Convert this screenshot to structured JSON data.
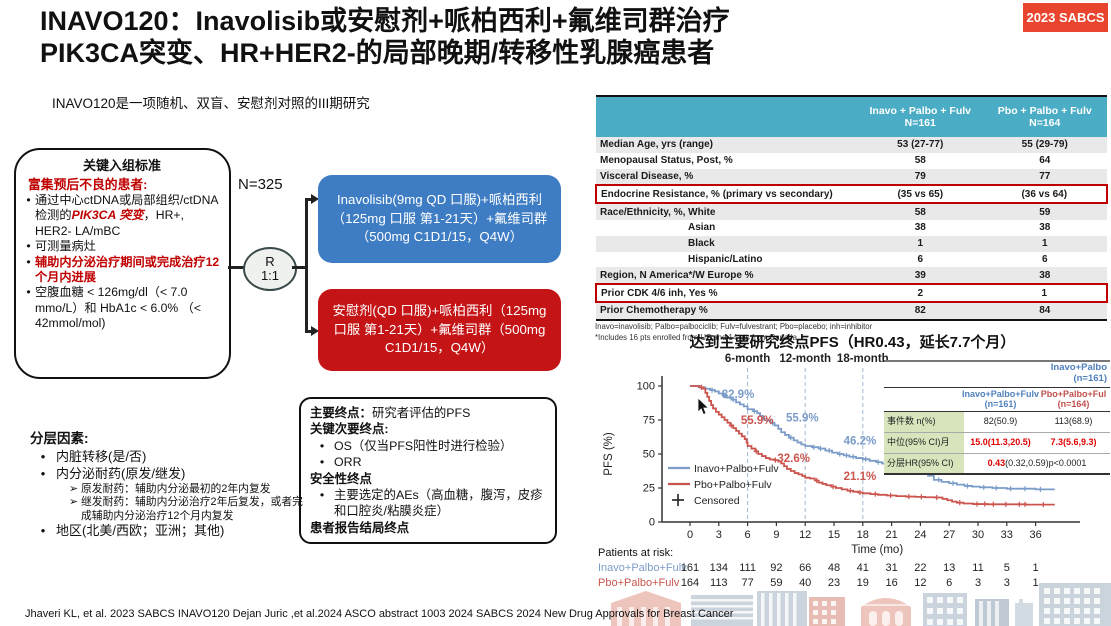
{
  "slide": {
    "title_line1": "INAVO120：Inavolisib或安慰剂+哌柏西利+氟维司群治疗",
    "title_line2": "PIK3CA突变、HR+HER2-的局部晚期/转移性乳腺癌患者",
    "badge": "2023 SABCS",
    "subtitle": "INAVO120是一项随机、双盲、安慰剂对照的III期研究",
    "footer": "Jhaveri KL, et al. 2023 SABCS INAVO120    Dejan Juric ,et al.2024 ASCO abstract 1003 2024 SABCS  2024 New Drug Approvals for Breast Cancer"
  },
  "schema": {
    "n_label": "N=325",
    "randomization_line1": "R",
    "randomization_line2": "1:1",
    "criteria": {
      "heading": "关键入组标准",
      "subheading": "富集预后不良的患者:",
      "bullets": [
        {
          "segments": [
            {
              "t": "通过中心ctDNA或局部组织/ctDNA检测的"
            },
            {
              "t": "PIK3CA 突变",
              "c": "red-bold-italic"
            },
            {
              "t": "，HR+, HER2- LA/mBC"
            }
          ]
        },
        {
          "segments": [
            {
              "t": "可测量病灶"
            }
          ]
        },
        {
          "segments": [
            {
              "t": "辅助内分泌治疗期间或完成治疗12个月内进展",
              "c": "red-bold"
            }
          ]
        },
        {
          "segments": [
            {
              "t": "空腹血糖 < 126mg/dl（< 7.0 mmo/L）和 HbA1c < 6.0% （< 42mmol/mol)"
            }
          ]
        }
      ]
    },
    "arm_inavo": "Inavolisib(9mg QD 口服)+哌柏西利（125mg 口服 第1-21天）+氟维司群（500mg C1D1/15，Q4W）",
    "arm_placebo": "安慰剂(QD 口服)+哌柏西利（125mg 口服 第1-21天）+氟维司群（500mg C1D1/15，Q4W）"
  },
  "endpoints": {
    "lines": [
      {
        "bullet": false,
        "segments": [
          {
            "t": "主要终点：",
            "c": "bold"
          },
          {
            "t": "研究者评估的PFS"
          }
        ]
      },
      {
        "bullet": false,
        "segments": [
          {
            "t": "关键次要终点:",
            "c": "bold"
          }
        ]
      },
      {
        "bullet": true,
        "segments": [
          {
            "t": "OS（仅当PFS阳性时进行检验）"
          }
        ]
      },
      {
        "bullet": true,
        "segments": [
          {
            "t": "ORR"
          }
        ]
      },
      {
        "bullet": false,
        "segments": [
          {
            "t": "安全性终点",
            "c": "bold"
          }
        ]
      },
      {
        "bullet": true,
        "segments": [
          {
            "t": "主要选定的AEs（高血糖，腹泻，皮疹和口腔炎/粘膜炎症）"
          }
        ]
      },
      {
        "bullet": false,
        "segments": [
          {
            "t": "患者报告结局终点",
            "c": "bold"
          }
        ]
      }
    ]
  },
  "stratification": {
    "heading": "分层因素:",
    "items": [
      {
        "level": 1,
        "text": "内脏转移(是/否)"
      },
      {
        "level": 1,
        "text": "内分泌耐药(原发/继发)"
      },
      {
        "level": 2,
        "text": "原发耐药：辅助内分泌最初的2年内复发"
      },
      {
        "level": 2,
        "text": "继发耐药：辅助内分泌治疗2年后复发，或者完成辅助内分泌治疗12个月内复发"
      },
      {
        "level": 1,
        "text": "地区(北美/西欧；亚洲；其他)"
      }
    ]
  },
  "baseline_table": {
    "col1": {
      "line1": "Inavo + Palbo + Fulv",
      "line2": "N=161"
    },
    "col2": {
      "line1": "Pbo + Palbo + Fulv",
      "line2": "N=164"
    },
    "rows": [
      {
        "label": "Median Age, yrs (range)",
        "v1": "53 (27-77)",
        "v2": "55 (29-79)"
      },
      {
        "label": "Menopausal Status, Post, %",
        "v1": "58",
        "v2": "64"
      },
      {
        "label": "Visceral Disease, %",
        "v1": "79",
        "v2": "77"
      },
      {
        "label": "Endocrine Resistance, % (primary vs secondary)",
        "v1": "(35 vs 65)",
        "v2": "(36 vs 64)",
        "highlight": true
      },
      {
        "label": "Race/Ethnicity, %, White",
        "v1": "58",
        "v2": "59"
      },
      {
        "label": "Asian",
        "v1": "38",
        "v2": "38",
        "indent": true
      },
      {
        "label": "Black",
        "v1": "1",
        "v2": "1",
        "indent": true
      },
      {
        "label": "Hispanic/Latino",
        "v1": "6",
        "v2": "6",
        "indent": true
      },
      {
        "label": "Region, N America*/W Europe %",
        "v1": "39",
        "v2": "38"
      },
      {
        "label": "Prior CDK 4/6 inh, Yes %",
        "v1": "2",
        "v2": "1",
        "highlight": true
      },
      {
        "label": "Prior Chemotherapy %",
        "v1": "82",
        "v2": "84"
      }
    ],
    "footnote1": "Inavo=inavolisib; Palbo=palbociclib; Fulv=fulvestrant; Pbo=placebo; inh=inhibitor",
    "footnote2": "*Includes 16 pts enrolled from US and 14 pts from Canada"
  },
  "chart_data": {
    "type": "line",
    "subtype": "kaplan-meier",
    "title": "达到主要研究终点PFS（HR0.43，延长7.7个月）",
    "xlabel": "Time (mo)",
    "ylabel": "PFS (%)",
    "xlim": [
      0,
      38.5
    ],
    "ylim": [
      0,
      100
    ],
    "xticks": [
      0,
      3,
      6,
      9,
      12,
      15,
      18,
      21,
      24,
      27,
      30,
      33,
      36
    ],
    "yticks": [
      0,
      25,
      50,
      75,
      100
    ],
    "grid": false,
    "legend_position": "lower-left",
    "landmarks": [
      {
        "x": 6,
        "label": "6-month"
      },
      {
        "x": 12,
        "label": "12-month"
      },
      {
        "x": 18,
        "label": "18-month"
      }
    ],
    "series": [
      {
        "name": "Inavo+Palbo+Fulv",
        "color": "#7b9cc9",
        "points": [
          [
            0,
            100
          ],
          [
            0.9,
            99
          ],
          [
            1.6,
            98
          ],
          [
            2.1,
            97
          ],
          [
            2.6,
            96
          ],
          [
            3,
            94.5
          ],
          [
            3.4,
            93
          ],
          [
            3.8,
            91.5
          ],
          [
            4.3,
            90
          ],
          [
            4.8,
            88
          ],
          [
            5.2,
            86.5
          ],
          [
            5.6,
            85
          ],
          [
            6,
            82.9
          ],
          [
            6.6,
            81.5
          ],
          [
            7,
            80
          ],
          [
            7.3,
            78
          ],
          [
            7.6,
            76
          ],
          [
            8,
            74.5
          ],
          [
            8.4,
            73
          ],
          [
            8.8,
            71
          ],
          [
            9.2,
            68.5
          ],
          [
            9.5,
            66
          ],
          [
            9.9,
            64
          ],
          [
            10.3,
            62
          ],
          [
            10.8,
            60
          ],
          [
            11.2,
            58.5
          ],
          [
            11.6,
            57
          ],
          [
            12,
            55.9
          ],
          [
            12.7,
            55
          ],
          [
            13.4,
            54
          ],
          [
            14.1,
            52.5
          ],
          [
            14.8,
            51
          ],
          [
            15.4,
            50
          ],
          [
            16,
            49
          ],
          [
            16.6,
            48
          ],
          [
            17.3,
            47
          ],
          [
            18,
            46.2
          ],
          [
            18.7,
            45
          ],
          [
            19.4,
            44
          ],
          [
            20,
            43
          ],
          [
            20.6,
            42
          ],
          [
            21.2,
            40.5
          ],
          [
            21.8,
            39.5
          ],
          [
            22.4,
            38
          ],
          [
            23.2,
            37.5
          ],
          [
            24,
            36.5
          ],
          [
            24.8,
            34
          ],
          [
            25.4,
            31
          ],
          [
            26.2,
            29.5
          ],
          [
            27,
            28.5
          ],
          [
            27.8,
            27.5
          ],
          [
            28.6,
            26.5
          ],
          [
            29.4,
            26
          ],
          [
            30.2,
            25.5
          ],
          [
            31.5,
            25
          ],
          [
            33,
            24.5
          ],
          [
            34.5,
            24.5
          ],
          [
            36,
            24
          ],
          [
            38,
            24
          ]
        ],
        "censors": [
          1.2,
          2.3,
          3.6,
          4.5,
          6.7,
          7.7,
          8.6,
          10.5,
          12.9,
          13.6,
          14.5,
          15.6,
          16.3,
          17,
          18.3,
          19.6,
          20.3,
          21.4,
          22.1,
          22.9,
          23.5,
          24.3,
          25.9,
          27.4,
          28.9,
          30.6,
          31.9,
          33.4,
          34.9,
          36.5
        ]
      },
      {
        "name": "Pbo+Palbo+Fulv",
        "color": "#cb554e",
        "points": [
          [
            0,
            100
          ],
          [
            1,
            99
          ],
          [
            1.4,
            98
          ],
          [
            1.6,
            95
          ],
          [
            1.8,
            92
          ],
          [
            2,
            89
          ],
          [
            2.2,
            86
          ],
          [
            2.4,
            83.5
          ],
          [
            2.7,
            81
          ],
          [
            3,
            79
          ],
          [
            3.3,
            77
          ],
          [
            3.6,
            75
          ],
          [
            3.9,
            73
          ],
          [
            4.2,
            71
          ],
          [
            4.5,
            69
          ],
          [
            4.8,
            67
          ],
          [
            5.1,
            65
          ],
          [
            5.4,
            63
          ],
          [
            5.7,
            61
          ],
          [
            5.9,
            58.5
          ],
          [
            6,
            55.9
          ],
          [
            6.4,
            54
          ],
          [
            6.8,
            52
          ],
          [
            7.1,
            50
          ],
          [
            7.5,
            48.5
          ],
          [
            7.9,
            47
          ],
          [
            8.3,
            46
          ],
          [
            8.8,
            45.5
          ],
          [
            9.2,
            44.5
          ],
          [
            9.5,
            43
          ],
          [
            9.8,
            41
          ],
          [
            10.1,
            39
          ],
          [
            10.5,
            37.5
          ],
          [
            10.9,
            36
          ],
          [
            11.3,
            35
          ],
          [
            11.7,
            33.8
          ],
          [
            12,
            32.6
          ],
          [
            12.5,
            32
          ],
          [
            13,
            30.5
          ],
          [
            13.4,
            29
          ],
          [
            13.8,
            28
          ],
          [
            14.2,
            27
          ],
          [
            14.7,
            26
          ],
          [
            15.2,
            25
          ],
          [
            15.8,
            24
          ],
          [
            16.4,
            23
          ],
          [
            17,
            22.3
          ],
          [
            17.5,
            21.7
          ],
          [
            18,
            21.1
          ],
          [
            18.8,
            20.5
          ],
          [
            19.6,
            20
          ],
          [
            20.5,
            19.5
          ],
          [
            21.5,
            19
          ],
          [
            22.5,
            18.7
          ],
          [
            23.5,
            18.5
          ],
          [
            24.5,
            18.2
          ],
          [
            25.5,
            18
          ],
          [
            26.3,
            17
          ],
          [
            26.8,
            16
          ],
          [
            27.3,
            15
          ],
          [
            27.8,
            14.2
          ],
          [
            28.5,
            13.6
          ],
          [
            29.5,
            13.2
          ],
          [
            31,
            13
          ],
          [
            33,
            13
          ],
          [
            35,
            12.8
          ],
          [
            38,
            12.8
          ]
        ],
        "censors": [
          1.2,
          4.3,
          6.9,
          8.9,
          13.2,
          14.9,
          16.7,
          17.7,
          19.3,
          20.9,
          22.8,
          24.1,
          25.7,
          28.1,
          29.9,
          30.7,
          31.6,
          32.9,
          34.3,
          34.9,
          36.8
        ]
      }
    ],
    "annotations": [
      {
        "x": 5.0,
        "y": 91,
        "text": "82.9%",
        "series": 0
      },
      {
        "x": 7.0,
        "y": 72,
        "text": "55.9%",
        "series": 1
      },
      {
        "x": 11.7,
        "y": 74,
        "text": "55.9%",
        "series": 0
      },
      {
        "x": 10.8,
        "y": 44,
        "text": "32.6%",
        "series": 1
      },
      {
        "x": 17.7,
        "y": 57,
        "text": "46.2%",
        "series": 0
      },
      {
        "x": 17.7,
        "y": 31,
        "text": "21.1%",
        "series": 1
      }
    ],
    "legend": [
      {
        "name": "Inavo+Palbo+Fulv",
        "series": 0
      },
      {
        "name": "Pbo+Palbo+Fulv",
        "series": 1
      },
      {
        "name": "Censored",
        "marker": "+"
      }
    ],
    "at_risk": {
      "title": "Patients at risk:",
      "rows": [
        {
          "name": "Inavo+Palbo+Fulv",
          "series": 0,
          "values": [
            161,
            134,
            111,
            92,
            66,
            48,
            41,
            31,
            22,
            13,
            11,
            5,
            1
          ]
        },
        {
          "name": "Pbo+Palbo+Fulv",
          "series": 1,
          "values": [
            164,
            113,
            77,
            59,
            40,
            23,
            19,
            16,
            12,
            6,
            3,
            3,
            1
          ]
        }
      ]
    }
  },
  "results_table": {
    "corner_line1": "Inavo+Palbo",
    "corner_line2": "(n=161)",
    "col1": {
      "line1": "Inavo+Palbo+Fulv",
      "line2": "(n=161)"
    },
    "col2": {
      "line1": "Pbo+Palbo+Ful",
      "line2": "(n=164)"
    },
    "rows": [
      {
        "label": "事件数 n(%)",
        "v1": [
          {
            "t": "82(50.9)"
          }
        ],
        "v2": [
          {
            "t": "113(68.9)"
          }
        ]
      },
      {
        "label": "中位(95% CI)月",
        "v1": [
          {
            "t": "15.0(11.3,20.5)",
            "c": "red-bold"
          }
        ],
        "v2": [
          {
            "t": "7.3(5.6,9.3)",
            "c": "red-bold"
          }
        ]
      },
      {
        "label": "分层HR(95% CI)",
        "merged": [
          {
            "t": "0.43",
            "c": "red-bold"
          },
          {
            "t": "(0.32,0.59)p<0.0001"
          }
        ]
      }
    ]
  },
  "colors": {
    "badge_bg": "#e8442e",
    "arm_inavo_bg": "#3e7dc4",
    "arm_placebo_bg": "#c51416",
    "table_header_bg": "#4bacc6",
    "highlight_border": "#c00000",
    "inavo_series": "#7b9cc9",
    "placebo_series": "#cb554e",
    "inset_label_bg": "#d7e4bc",
    "inset_col1_text": "#4f81bd",
    "inset_col2_text": "#c0504d"
  }
}
